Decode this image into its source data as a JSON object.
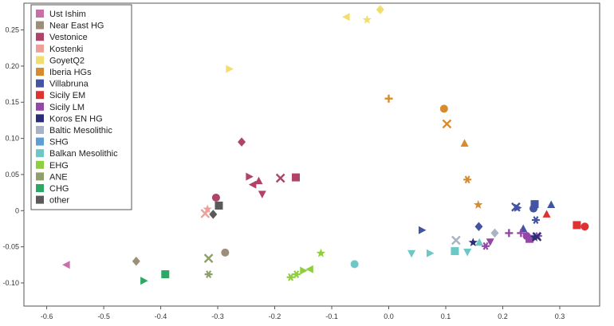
{
  "chart_data": {
    "type": "scatter",
    "title": "",
    "xlabel": "",
    "ylabel": "",
    "xlim": [
      -0.64,
      0.37
    ],
    "ylim": [
      -0.132,
      0.287
    ],
    "x_ticks": [
      "-0.6",
      "-0.5",
      "-0.4",
      "-0.3",
      "-0.2",
      "-0.1",
      "0.0",
      "0.1",
      "0.2",
      "0.3"
    ],
    "y_ticks": [
      "-0.10",
      "-0.05",
      "0",
      "0.05",
      "0.10",
      "0.15",
      "0.20",
      "0.25"
    ],
    "grid": false,
    "legend_position": "top-left",
    "legend": [
      {
        "name": "Ust Ishim",
        "color": "#c96fa8"
      },
      {
        "name": "Near East HG",
        "color": "#9c8e78"
      },
      {
        "name": "Vestonice",
        "color": "#b0436a"
      },
      {
        "name": "Kostenki",
        "color": "#ee9f97"
      },
      {
        "name": "GoyetQ2",
        "color": "#f2de6c"
      },
      {
        "name": "Iberia HGs",
        "color": "#d88b2e"
      },
      {
        "name": "Villabruna",
        "color": "#4354a3"
      },
      {
        "name": "Sicily EM",
        "color": "#e03131"
      },
      {
        "name": "Sicily LM",
        "color": "#9447a6"
      },
      {
        "name": "Koros EN HG",
        "color": "#2c2d78"
      },
      {
        "name": "Baltic Mesolithic",
        "color": "#aab3c6"
      },
      {
        "name": "SHG",
        "color": "#5b9fd6"
      },
      {
        "name": "Balkan Mesolithic",
        "color": "#6cc7c7"
      },
      {
        "name": "EHG",
        "color": "#8fcf3c"
      },
      {
        "name": "ANE",
        "color": "#8ea06a"
      },
      {
        "name": "CHG",
        "color": "#2aa864"
      },
      {
        "name": "other",
        "color": "#5a5a5a"
      }
    ],
    "points": [
      {
        "x": -0.565,
        "y": -0.075,
        "color": "#c96fa8",
        "marker": "triangle-left"
      },
      {
        "x": -0.443,
        "y": -0.07,
        "color": "#9c8e78",
        "marker": "diamond"
      },
      {
        "x": -0.287,
        "y": -0.058,
        "color": "#9c8e78",
        "marker": "circle"
      },
      {
        "x": -0.303,
        "y": 0.018,
        "color": "#b0436a",
        "marker": "circle"
      },
      {
        "x": -0.258,
        "y": 0.095,
        "color": "#b0436a",
        "marker": "diamond"
      },
      {
        "x": -0.245,
        "y": 0.047,
        "color": "#b0436a",
        "marker": "triangle-right"
      },
      {
        "x": -0.238,
        "y": 0.036,
        "color": "#b0436a",
        "marker": "triangle-left"
      },
      {
        "x": -0.228,
        "y": 0.041,
        "color": "#b0436a",
        "marker": "triangle-up"
      },
      {
        "x": -0.222,
        "y": 0.023,
        "color": "#b0436a",
        "marker": "triangle-down"
      },
      {
        "x": -0.19,
        "y": 0.045,
        "color": "#b0436a",
        "marker": "x"
      },
      {
        "x": -0.163,
        "y": 0.046,
        "color": "#b0436a",
        "marker": "square"
      },
      {
        "x": -0.318,
        "y": 0.002,
        "color": "#ee9f97",
        "marker": "star"
      },
      {
        "x": -0.322,
        "y": -0.004,
        "color": "#ee9f97",
        "marker": "x"
      },
      {
        "x": -0.28,
        "y": 0.196,
        "color": "#f2de6c",
        "marker": "triangle-right"
      },
      {
        "x": -0.074,
        "y": 0.268,
        "color": "#f2de6c",
        "marker": "triangle-left"
      },
      {
        "x": -0.038,
        "y": 0.264,
        "color": "#f2de6c",
        "marker": "star"
      },
      {
        "x": -0.015,
        "y": 0.278,
        "color": "#f2de6c",
        "marker": "diamond"
      },
      {
        "x": 0.0,
        "y": 0.155,
        "color": "#d88b2e",
        "marker": "plus"
      },
      {
        "x": 0.097,
        "y": 0.141,
        "color": "#d88b2e",
        "marker": "circle"
      },
      {
        "x": 0.102,
        "y": 0.12,
        "color": "#d88b2e",
        "marker": "x"
      },
      {
        "x": 0.133,
        "y": 0.093,
        "color": "#d88b2e",
        "marker": "triangle-up"
      },
      {
        "x": 0.138,
        "y": 0.043,
        "color": "#d88b2e",
        "marker": "asterisk"
      },
      {
        "x": 0.157,
        "y": 0.008,
        "color": "#d88b2e",
        "marker": "star"
      },
      {
        "x": 0.058,
        "y": -0.027,
        "color": "#4354a3",
        "marker": "triangle-right"
      },
      {
        "x": 0.158,
        "y": -0.022,
        "color": "#4354a3",
        "marker": "diamond"
      },
      {
        "x": 0.223,
        "y": 0.005,
        "color": "#4354a3",
        "marker": "x"
      },
      {
        "x": 0.226,
        "y": 0.004,
        "color": "#4354a3",
        "marker": "triangle-right"
      },
      {
        "x": 0.236,
        "y": -0.025,
        "color": "#4354a3",
        "marker": "triangle-up"
      },
      {
        "x": 0.254,
        "y": 0.003,
        "color": "#4354a3",
        "marker": "circle"
      },
      {
        "x": 0.256,
        "y": 0.009,
        "color": "#4354a3",
        "marker": "square"
      },
      {
        "x": 0.258,
        "y": -0.013,
        "color": "#4354a3",
        "marker": "asterisk"
      },
      {
        "x": 0.285,
        "y": 0.008,
        "color": "#4354a3",
        "marker": "triangle-up"
      },
      {
        "x": 0.277,
        "y": -0.005,
        "color": "#e03131",
        "marker": "triangle-up"
      },
      {
        "x": 0.33,
        "y": -0.02,
        "color": "#e03131",
        "marker": "square"
      },
      {
        "x": 0.344,
        "y": -0.022,
        "color": "#e03131",
        "marker": "circle"
      },
      {
        "x": 0.17,
        "y": -0.049,
        "color": "#9447a6",
        "marker": "asterisk"
      },
      {
        "x": 0.178,
        "y": -0.043,
        "color": "#9447a6",
        "marker": "triangle-down"
      },
      {
        "x": 0.211,
        "y": -0.031,
        "color": "#9447a6",
        "marker": "plus"
      },
      {
        "x": 0.232,
        "y": -0.031,
        "color": "#9447a6",
        "marker": "plus"
      },
      {
        "x": 0.242,
        "y": -0.035,
        "color": "#9447a6",
        "marker": "circle"
      },
      {
        "x": 0.247,
        "y": -0.039,
        "color": "#9447a6",
        "marker": "square"
      },
      {
        "x": 0.262,
        "y": -0.035,
        "color": "#9447a6",
        "marker": "asterisk"
      },
      {
        "x": 0.148,
        "y": -0.044,
        "color": "#2c2d78",
        "marker": "star"
      },
      {
        "x": 0.256,
        "y": -0.037,
        "color": "#2c2d78",
        "marker": "star"
      },
      {
        "x": 0.26,
        "y": -0.036,
        "color": "#2c2d78",
        "marker": "x"
      },
      {
        "x": 0.118,
        "y": -0.041,
        "color": "#aab3c6",
        "marker": "x"
      },
      {
        "x": 0.186,
        "y": -0.031,
        "color": "#aab3c6",
        "marker": "diamond"
      },
      {
        "x": 0.04,
        "y": -0.059,
        "color": "#6cc7c7",
        "marker": "triangle-down"
      },
      {
        "x": -0.06,
        "y": -0.074,
        "color": "#6cc7c7",
        "marker": "circle"
      },
      {
        "x": 0.072,
        "y": -0.059,
        "color": "#6cc7c7",
        "marker": "triangle-right"
      },
      {
        "x": 0.116,
        "y": -0.056,
        "color": "#6cc7c7",
        "marker": "square"
      },
      {
        "x": 0.138,
        "y": -0.057,
        "color": "#6cc7c7",
        "marker": "triangle-down"
      },
      {
        "x": 0.159,
        "y": -0.044,
        "color": "#6cc7c7",
        "marker": "triangle-up"
      },
      {
        "x": -0.172,
        "y": -0.092,
        "color": "#8fcf3c",
        "marker": "asterisk"
      },
      {
        "x": -0.162,
        "y": -0.088,
        "color": "#8fcf3c",
        "marker": "asterisk"
      },
      {
        "x": -0.15,
        "y": -0.083,
        "color": "#8fcf3c",
        "marker": "triangle-right"
      },
      {
        "x": -0.138,
        "y": -0.081,
        "color": "#8fcf3c",
        "marker": "triangle-left"
      },
      {
        "x": -0.119,
        "y": -0.059,
        "color": "#8fcf3c",
        "marker": "star"
      },
      {
        "x": -0.316,
        "y": -0.066,
        "color": "#8ea06a",
        "marker": "x"
      },
      {
        "x": -0.316,
        "y": -0.088,
        "color": "#8ea06a",
        "marker": "asterisk"
      },
      {
        "x": -0.43,
        "y": -0.097,
        "color": "#2aa864",
        "marker": "triangle-right"
      },
      {
        "x": -0.392,
        "y": -0.088,
        "color": "#2aa864",
        "marker": "square"
      },
      {
        "x": -0.298,
        "y": 0.007,
        "color": "#5a5a5a",
        "marker": "square"
      },
      {
        "x": -0.308,
        "y": -0.005,
        "color": "#5a5a5a",
        "marker": "diamond"
      }
    ]
  }
}
